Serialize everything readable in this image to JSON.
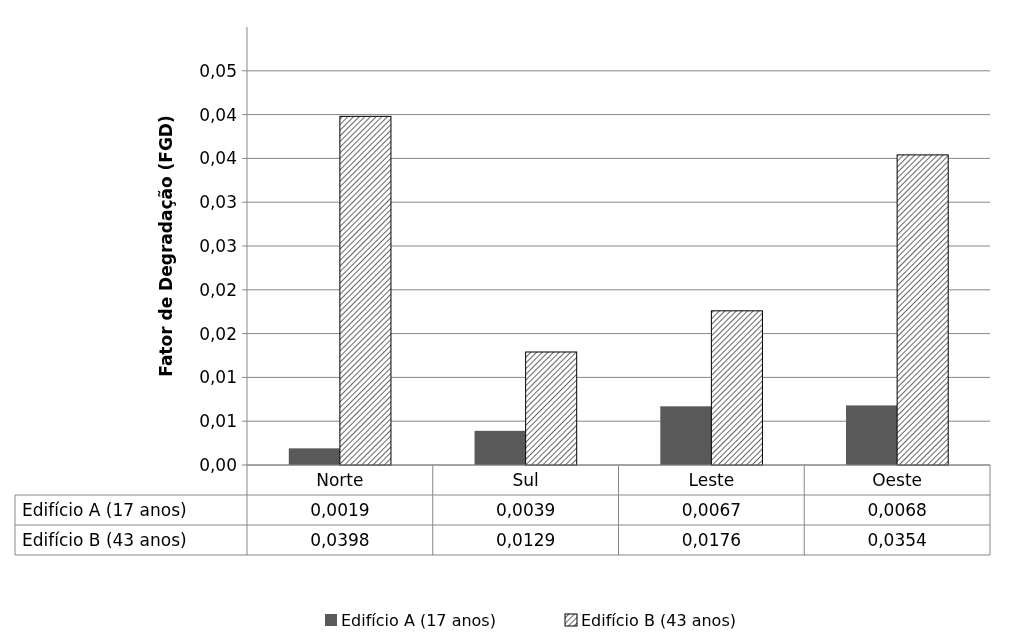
{
  "chart_data": {
    "type": "bar",
    "ylabel": "Fator de Degradação (FGD)",
    "categories": [
      "Norte",
      "Sul",
      "Leste",
      "Oeste"
    ],
    "series": [
      {
        "name": "Edifício A (17 anos)",
        "color": "#595959",
        "values": [
          0.0019,
          0.0039,
          0.0067,
          0.0068
        ],
        "value_labels": [
          "0,0019",
          "0,0039",
          "0,0067",
          "0,0068"
        ]
      },
      {
        "name": "Edifício B (43 anos)",
        "color": "#000000",
        "values": [
          0.0398,
          0.0129,
          0.0176,
          0.0354
        ],
        "value_labels": [
          "0,0398",
          "0,0129",
          "0,0176",
          "0,0354"
        ]
      }
    ],
    "ylim": [
      0,
      0.05
    ],
    "yticks": [
      {
        "value": 0,
        "label": "0,00"
      },
      {
        "value": 0.005,
        "label": "0,01"
      },
      {
        "value": 0.01,
        "label": "0,01"
      },
      {
        "value": 0.015,
        "label": "0,02"
      },
      {
        "value": 0.02,
        "label": "0,02"
      },
      {
        "value": 0.025,
        "label": "0,03"
      },
      {
        "value": 0.03,
        "label": "0,03"
      },
      {
        "value": 0.035,
        "label": "0,04"
      },
      {
        "value": 0.04,
        "label": "0,04"
      },
      {
        "value": 0.045,
        "label": "0,05"
      }
    ],
    "grid": "y",
    "legend": "bottom"
  }
}
